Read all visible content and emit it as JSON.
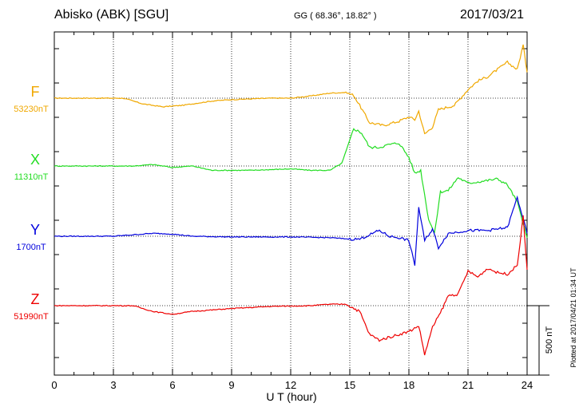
{
  "header": {
    "station": "Abisko (ABK)  [SGU]",
    "coords": "GG ( 68.36°,  18.82° )",
    "date": "2017/03/21"
  },
  "components": [
    {
      "letter": "F",
      "baseline": "53230nT",
      "color": "#f0a800"
    },
    {
      "letter": "X",
      "baseline": "11310nT",
      "color": "#22dd22"
    },
    {
      "letter": "Y",
      "baseline": "1700nT",
      "color": "#0000dd"
    },
    {
      "letter": "Z",
      "baseline": "51990nT",
      "color": "#ee0000"
    }
  ],
  "scale_bar_label": "500 nT",
  "plotted_note": "Plotted at 2017/04/21 01:34 UT",
  "chart_data": {
    "type": "line",
    "xlabel": "U T (hour)",
    "xlim": [
      0,
      24
    ],
    "xticks": [
      0,
      3,
      6,
      9,
      12,
      15,
      18,
      21,
      24
    ],
    "grid": true,
    "scale_nT": 500,
    "series": [
      {
        "name": "F",
        "baseline_nT": 53230,
        "color": "#f0a800",
        "points": [
          [
            0,
            0
          ],
          [
            2,
            0
          ],
          [
            3.5,
            0
          ],
          [
            4.5,
            -40
          ],
          [
            5.5,
            -60
          ],
          [
            6.5,
            -50
          ],
          [
            8,
            -20
          ],
          [
            9,
            -10
          ],
          [
            11,
            0
          ],
          [
            12,
            0
          ],
          [
            13,
            15
          ],
          [
            14,
            35
          ],
          [
            14.8,
            40
          ],
          [
            15.2,
            20
          ],
          [
            15.5,
            -50
          ],
          [
            16,
            -170
          ],
          [
            16.7,
            -190
          ],
          [
            17.5,
            -160
          ],
          [
            18,
            -130
          ],
          [
            18.3,
            -150
          ],
          [
            18.5,
            -90
          ],
          [
            18.8,
            -250
          ],
          [
            19.2,
            -200
          ],
          [
            19.5,
            -80
          ],
          [
            20.3,
            -50
          ],
          [
            21,
            60
          ],
          [
            21.5,
            120
          ],
          [
            22,
            150
          ],
          [
            22.5,
            200
          ],
          [
            23,
            250
          ],
          [
            23.5,
            200
          ],
          [
            23.8,
            370
          ],
          [
            24,
            180
          ]
        ]
      },
      {
        "name": "X",
        "baseline_nT": 11310,
        "color": "#22dd22",
        "points": [
          [
            0,
            0
          ],
          [
            4,
            0
          ],
          [
            5,
            10
          ],
          [
            6,
            -10
          ],
          [
            7,
            0
          ],
          [
            8,
            -30
          ],
          [
            10,
            -30
          ],
          [
            12,
            -20
          ],
          [
            13,
            -30
          ],
          [
            14,
            -30
          ],
          [
            14.6,
            20
          ],
          [
            15.2,
            260
          ],
          [
            15.6,
            230
          ],
          [
            16,
            130
          ],
          [
            16.5,
            130
          ],
          [
            17,
            150
          ],
          [
            17.5,
            160
          ],
          [
            18,
            60
          ],
          [
            18.3,
            -50
          ],
          [
            18.6,
            -30
          ],
          [
            19,
            -370
          ],
          [
            19.3,
            -470
          ],
          [
            19.6,
            -180
          ],
          [
            20,
            -170
          ],
          [
            20.5,
            -80
          ],
          [
            21,
            -120
          ],
          [
            22,
            -100
          ],
          [
            22.5,
            -90
          ],
          [
            23,
            -130
          ],
          [
            23.5,
            -250
          ],
          [
            24,
            -500
          ]
        ]
      },
      {
        "name": "Y",
        "baseline_nT": 1700,
        "color": "#0000dd",
        "points": [
          [
            0,
            0
          ],
          [
            3,
            0
          ],
          [
            4,
            10
          ],
          [
            5,
            20
          ],
          [
            6,
            15
          ],
          [
            7,
            0
          ],
          [
            9,
            -5
          ],
          [
            12,
            -5
          ],
          [
            14,
            -10
          ],
          [
            15,
            -20
          ],
          [
            15.5,
            -20
          ],
          [
            16,
            10
          ],
          [
            16.5,
            40
          ],
          [
            17,
            0
          ],
          [
            17.5,
            -10
          ],
          [
            18,
            -30
          ],
          [
            18.3,
            -200
          ],
          [
            18.5,
            200
          ],
          [
            18.8,
            -30
          ],
          [
            19.2,
            50
          ],
          [
            19.5,
            -80
          ],
          [
            20,
            20
          ],
          [
            21,
            40
          ],
          [
            22,
            40
          ],
          [
            23,
            60
          ],
          [
            23.5,
            270
          ],
          [
            24,
            20
          ]
        ]
      },
      {
        "name": "Z",
        "baseline_nT": 51990,
        "color": "#ee0000",
        "points": [
          [
            0,
            0
          ],
          [
            4,
            0
          ],
          [
            5,
            -40
          ],
          [
            6,
            -60
          ],
          [
            7,
            -40
          ],
          [
            9,
            -20
          ],
          [
            11,
            -5
          ],
          [
            13,
            0
          ],
          [
            14,
            10
          ],
          [
            14.8,
            10
          ],
          [
            15.5,
            -40
          ],
          [
            16,
            -200
          ],
          [
            16.5,
            -240
          ],
          [
            17,
            -220
          ],
          [
            17.5,
            -200
          ],
          [
            18,
            -180
          ],
          [
            18.5,
            -140
          ],
          [
            18.8,
            -340
          ],
          [
            19.2,
            -150
          ],
          [
            19.6,
            -50
          ],
          [
            20,
            70
          ],
          [
            20.5,
            80
          ],
          [
            21,
            240
          ],
          [
            21.5,
            200
          ],
          [
            22,
            260
          ],
          [
            22.5,
            230
          ],
          [
            23,
            220
          ],
          [
            23.5,
            280
          ],
          [
            23.8,
            620
          ],
          [
            24,
            250
          ]
        ]
      }
    ]
  }
}
